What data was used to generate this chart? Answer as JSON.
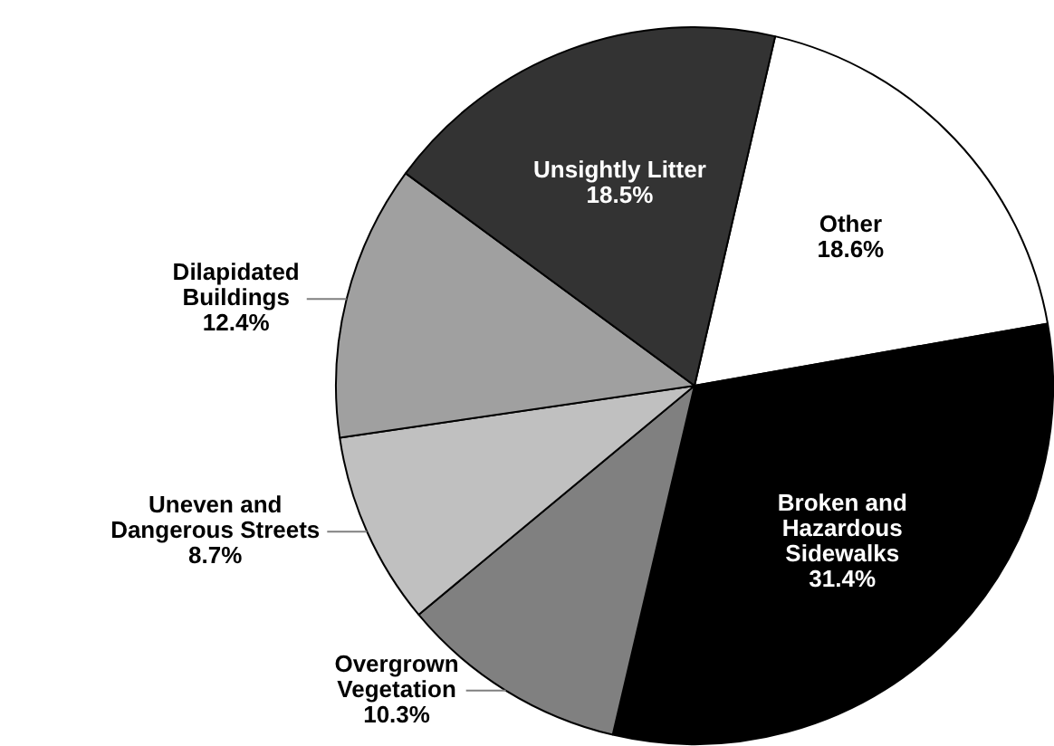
{
  "chart_data": {
    "type": "pie",
    "categories": [
      "Other",
      "Broken and Hazardous Sidewalks",
      "Overgrown Vegetation",
      "Uneven and Dangerous Streets",
      "Dilapidated Buildings",
      "Unsightly Litter"
    ],
    "values": [
      18.6,
      31.4,
      10.3,
      8.7,
      12.4,
      18.5
    ],
    "value_labels": [
      "18.6%",
      "31.4%",
      "10.3%",
      "8.7%",
      "12.4%",
      "18.5%"
    ],
    "colors": [
      "#ffffff",
      "#000000",
      "#808080",
      "#c0c0c0",
      "#a0a0a0",
      "#333333"
    ],
    "legend": false
  }
}
